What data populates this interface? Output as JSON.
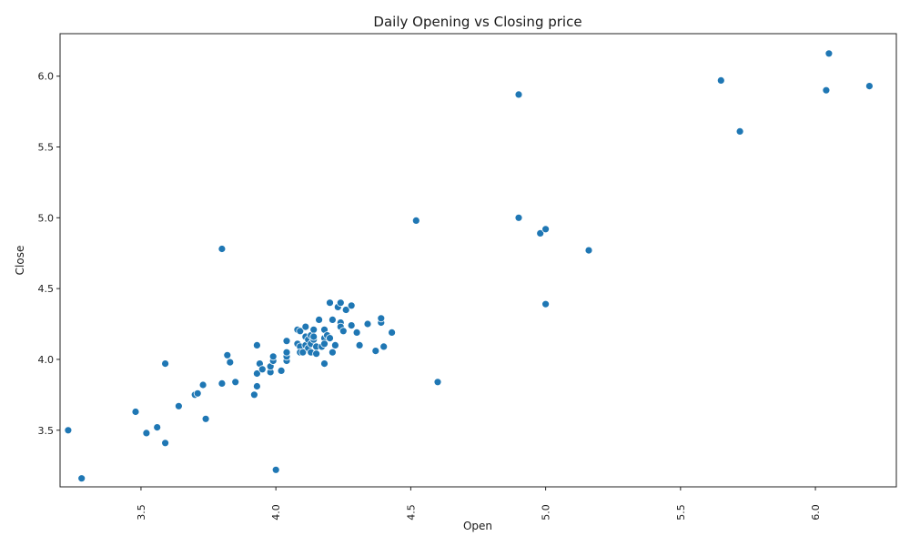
{
  "chart_data": {
    "type": "scatter",
    "title": "Daily Opening vs Closing price",
    "xlabel": "Open",
    "ylabel": "Close",
    "xlim": [
      3.2,
      6.3
    ],
    "ylim": [
      3.1,
      6.3
    ],
    "xticks": [
      3.5,
      4.0,
      4.5,
      5.0,
      5.5,
      6.0
    ],
    "xtick_labels": [
      "3.5",
      "4.0",
      "4.5",
      "5.0",
      "5.5",
      "6.0"
    ],
    "yticks": [
      3.5,
      4.0,
      4.5,
      5.0,
      5.5,
      6.0
    ],
    "ytick_labels": [
      "3.5",
      "4.0",
      "4.5",
      "5.0",
      "5.5",
      "6.0"
    ],
    "grid": false,
    "point_color": "#1f77b4",
    "series": [
      {
        "x": [
          3.23,
          3.28,
          3.48,
          3.52,
          3.56,
          3.59,
          3.59,
          3.64,
          3.7,
          3.71,
          3.73,
          3.74,
          3.8,
          3.8,
          3.82,
          3.83,
          3.85,
          3.92,
          3.93,
          3.93,
          3.93,
          3.94,
          3.95,
          3.98,
          3.98,
          3.99,
          3.99,
          4.0,
          4.02,
          4.04,
          4.04,
          4.04,
          4.04,
          4.08,
          4.08,
          4.09,
          4.09,
          4.09,
          4.1,
          4.11,
          4.11,
          4.11,
          4.12,
          4.12,
          4.13,
          4.13,
          4.13,
          4.14,
          4.14,
          4.14,
          4.15,
          4.15,
          4.16,
          4.17,
          4.18,
          4.18,
          4.18,
          4.18,
          4.19,
          4.2,
          4.2,
          4.21,
          4.21,
          4.22,
          4.23,
          4.24,
          4.24,
          4.24,
          4.25,
          4.26,
          4.28,
          4.28,
          4.3,
          4.31,
          4.34,
          4.37,
          4.39,
          4.39,
          4.4,
          4.43,
          4.52,
          4.6,
          4.9,
          4.9,
          4.98,
          5.0,
          5.0,
          5.16,
          5.65,
          5.72,
          6.04,
          6.05,
          6.2
        ],
        "y": [
          3.5,
          3.16,
          3.63,
          3.48,
          3.52,
          3.97,
          3.41,
          3.67,
          3.75,
          3.76,
          3.82,
          3.58,
          4.78,
          3.83,
          4.03,
          3.98,
          3.84,
          3.75,
          4.1,
          3.81,
          3.9,
          3.97,
          3.93,
          3.91,
          3.95,
          3.99,
          4.02,
          3.22,
          3.92,
          4.13,
          3.99,
          4.02,
          4.05,
          4.21,
          4.11,
          4.2,
          4.09,
          4.05,
          4.05,
          4.23,
          4.16,
          4.1,
          4.14,
          4.08,
          4.17,
          4.11,
          4.05,
          4.21,
          4.14,
          4.16,
          4.09,
          4.04,
          4.28,
          4.09,
          4.21,
          4.15,
          3.97,
          4.11,
          4.17,
          4.4,
          4.15,
          4.28,
          4.05,
          4.1,
          4.37,
          4.4,
          4.26,
          4.23,
          4.2,
          4.35,
          4.38,
          4.24,
          4.19,
          4.1,
          4.25,
          4.06,
          4.26,
          4.29,
          4.09,
          4.19,
          4.98,
          3.84,
          5.87,
          5.0,
          4.89,
          4.92,
          4.39,
          4.77,
          5.97,
          5.61,
          5.9,
          6.16,
          5.93
        ]
      }
    ]
  }
}
